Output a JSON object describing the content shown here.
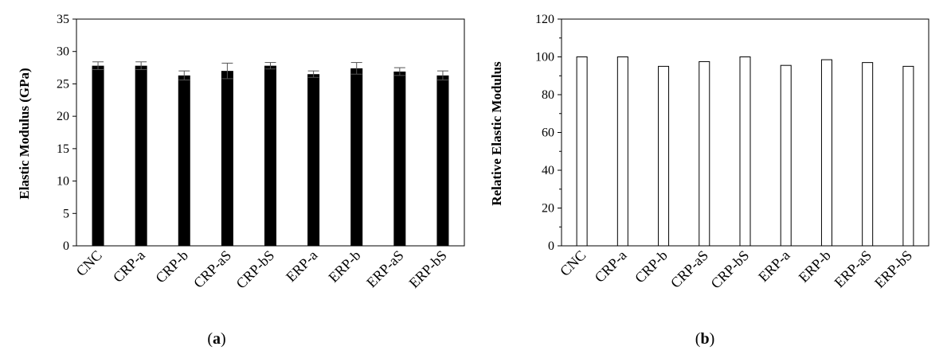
{
  "chart_data": [
    {
      "type": "bar",
      "panel_label": "a",
      "ylabel": "Elastic Modulus (GPa)",
      "xlabel": "",
      "ylim": [
        0,
        35
      ],
      "yticks": [
        0,
        5,
        10,
        15,
        20,
        25,
        30,
        35
      ],
      "categories": [
        "CNC",
        "CRP-a",
        "CRP-b",
        "CRP-aS",
        "CRP-bS",
        "ERP-a",
        "ERP-b",
        "ERP-aS",
        "ERP-bS"
      ],
      "values": [
        27.8,
        27.8,
        26.3,
        27.0,
        27.8,
        26.5,
        27.4,
        26.9,
        26.3
      ],
      "errors": [
        0.6,
        0.6,
        0.7,
        1.2,
        0.5,
        0.5,
        0.9,
        0.6,
        0.7
      ],
      "bar_fill": "#000000",
      "grid": false
    },
    {
      "type": "bar",
      "panel_label": "b",
      "ylabel": "Relative Elastic Modulus",
      "xlabel": "",
      "ylim": [
        0,
        120
      ],
      "yticks": [
        0,
        20,
        40,
        60,
        80,
        100,
        120
      ],
      "categories": [
        "CNC",
        "CRP-a",
        "CRP-b",
        "CRP-aS",
        "CRP-bS",
        "ERP-a",
        "ERP-b",
        "ERP-aS",
        "ERP-bS"
      ],
      "values": [
        100,
        100,
        95,
        97.5,
        100,
        95.5,
        98.5,
        97,
        95
      ],
      "bar_fill": "#ffffff",
      "bar_stroke": "#000000",
      "grid": false
    }
  ]
}
